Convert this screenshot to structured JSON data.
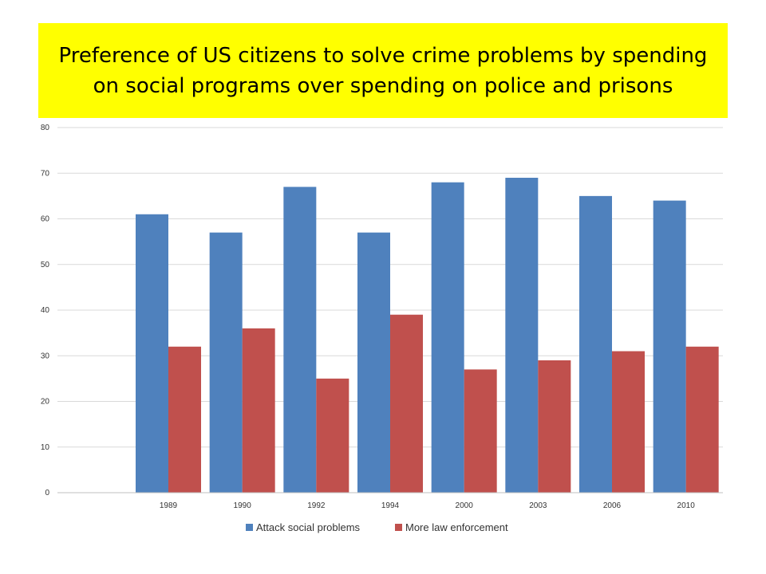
{
  "title": "Preference of US citizens to solve crime problems by spending on social programs over spending on police and prisons",
  "colors": {
    "title_bg": "#ffff00",
    "series1": "#4f81bd",
    "series2": "#c0504d",
    "grid": "#d9d9d9"
  },
  "chart_data": {
    "type": "bar",
    "title": "Preference of US citizens to solve crime problems by spending on social programs over spending on police and prisons",
    "categories": [
      "",
      "1989",
      "1990",
      "1992",
      "1994",
      "2000",
      "2003",
      "2006",
      "2010"
    ],
    "series": [
      {
        "name": "Attack social problems",
        "values": [
          null,
          61,
          57,
          67,
          57,
          68,
          69,
          65,
          64
        ]
      },
      {
        "name": "More law enforcement",
        "values": [
          null,
          32,
          36,
          25,
          39,
          27,
          29,
          31,
          32
        ]
      }
    ],
    "ylim": [
      0,
      80
    ],
    "yticks": [
      0,
      10,
      20,
      30,
      40,
      50,
      60,
      70,
      80
    ],
    "grid": true,
    "legend_position": "bottom"
  }
}
